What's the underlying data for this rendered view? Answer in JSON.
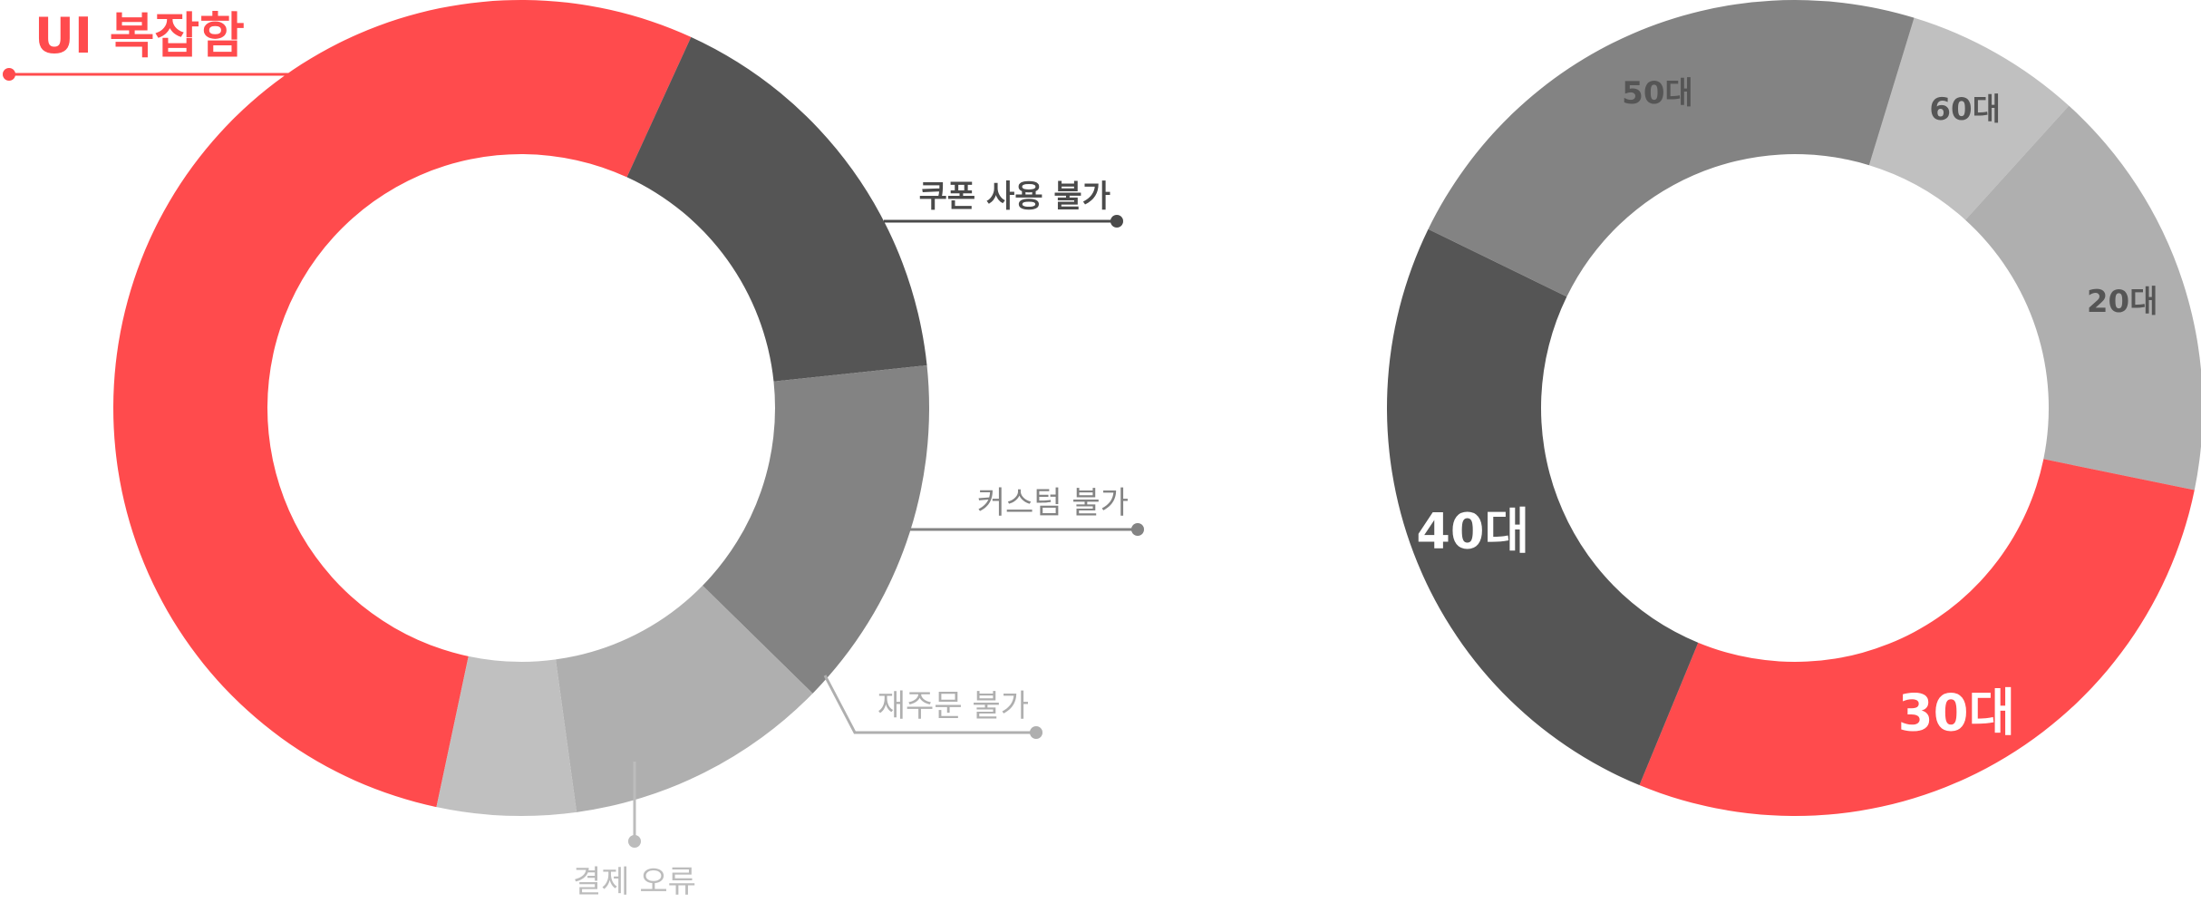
{
  "colors": {
    "red": "#ff4b4d",
    "dark": "#555555",
    "mid": "#838383",
    "light": "#afafaf",
    "lighter": "#c0c0c0",
    "white": "#ffffff"
  },
  "chart_data": [
    {
      "type": "pie",
      "variant": "donut",
      "title": "",
      "labels_style": "callout",
      "slices": [
        {
          "label": "UI 복잡함",
          "value": 53.5,
          "color": "#ff4b4d",
          "label_color": "#ff4b4d",
          "label_side": "left"
        },
        {
          "label": "쿠폰 사용 불가",
          "value": 16.5,
          "color": "#555555",
          "label_color": "#4a4a4a",
          "label_side": "right"
        },
        {
          "label": "커스텀 불가",
          "value": 14.0,
          "color": "#838383",
          "label_color": "#838383",
          "label_side": "right"
        },
        {
          "label": "재주문 불가",
          "value": 10.5,
          "color": "#afafaf",
          "label_color": "#afafaf",
          "label_side": "right"
        },
        {
          "label": "결제 오류",
          "value": 5.5,
          "color": "#c0c0c0",
          "label_color": "#bcbcbc",
          "label_side": "bottom"
        }
      ]
    },
    {
      "type": "pie",
      "variant": "donut",
      "title": "",
      "labels_style": "inside",
      "slices": [
        {
          "label": "60대",
          "value": 7.0,
          "color": "#c0c0c0",
          "label_color": "#555555"
        },
        {
          "label": "20대",
          "value": 16.5,
          "color": "#afafaf",
          "label_color": "#555555"
        },
        {
          "label": "30대",
          "value": 28.0,
          "color": "#ff4b4d",
          "label_color": "#ffffff"
        },
        {
          "label": "40대",
          "value": 26.0,
          "color": "#555555",
          "label_color": "#ffffff"
        },
        {
          "label": "50대",
          "value": 22.5,
          "color": "#838383",
          "label_color": "#555555"
        }
      ]
    }
  ]
}
